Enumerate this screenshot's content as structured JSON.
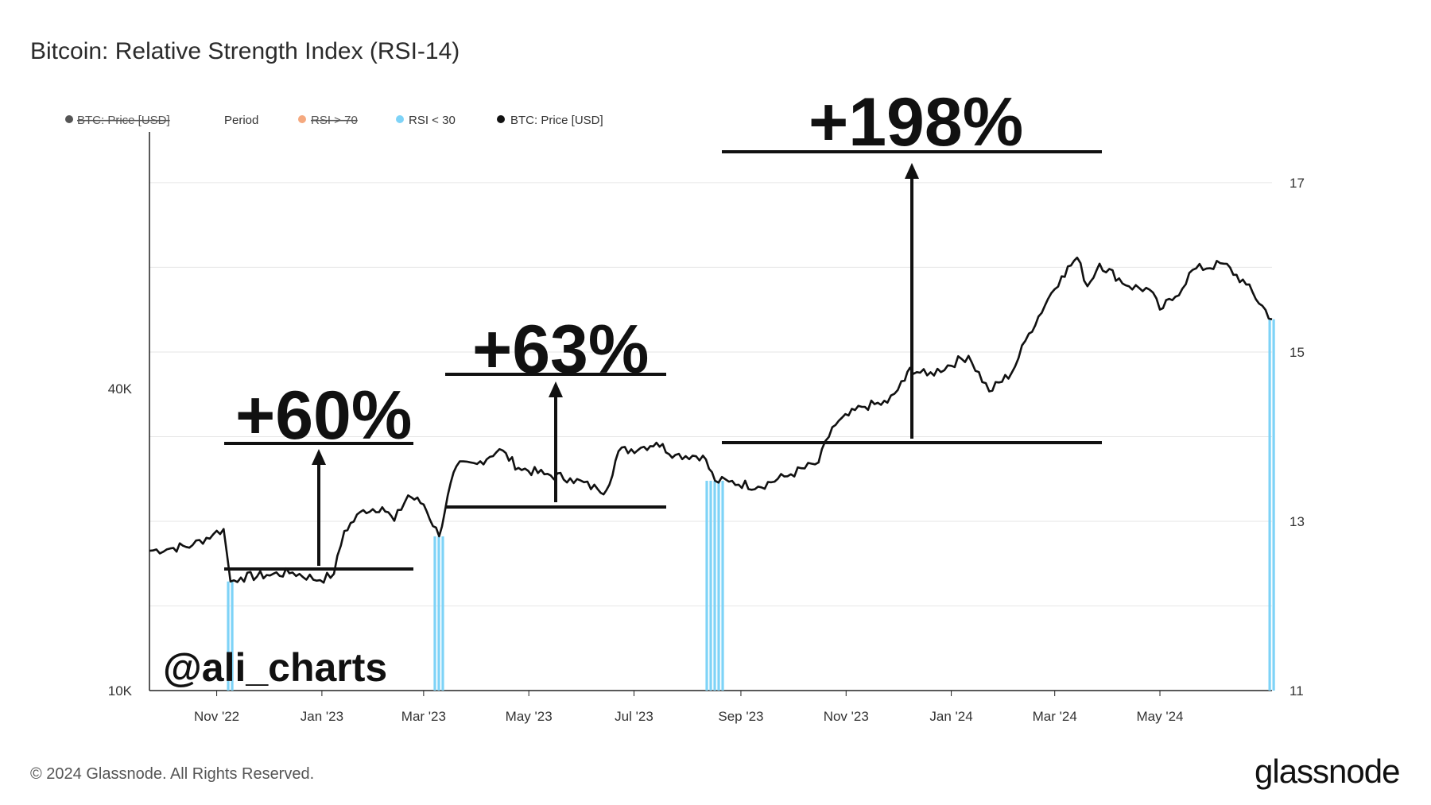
{
  "chart_data": {
    "type": "line",
    "title": "Bitcoin: Relative Strength Index (RSI-14)",
    "legend": {
      "placement": "top-left",
      "items": [
        {
          "label": "BTC: Price [USD]",
          "color": "#555555",
          "hidden": true
        },
        {
          "label": "Period",
          "color": "",
          "hidden": false
        },
        {
          "label": "RSI > 70",
          "color": "#f5a97f",
          "hidden": true
        },
        {
          "label": "RSI < 30",
          "color": "#7ed3f7",
          "hidden": false
        },
        {
          "label": "BTC: Price [USD]",
          "color": "#111111",
          "hidden": false
        }
      ]
    },
    "x_ticks": [
      "Nov '22",
      "Jan '23",
      "Mar '23",
      "May '23",
      "Jul '23",
      "Sep '23",
      "Nov '23",
      "Jan '24",
      "Mar '24",
      "May '24"
    ],
    "x_range": [
      "2022-09-23",
      "2024-07-05"
    ],
    "y_left": {
      "scale": "log",
      "ticks": [
        "40K",
        "10K"
      ],
      "tick_values": [
        40000,
        10000
      ],
      "range": [
        10000,
        130000
      ]
    },
    "y_right": {
      "ticks": [
        "17",
        "15",
        "13",
        "11"
      ],
      "tick_values": [
        17,
        15,
        13,
        11
      ],
      "range": [
        11,
        17.6
      ]
    },
    "grid": true,
    "series": [
      {
        "name": "BTC: Price [USD]",
        "color": "#111111",
        "x": [
          "2022-09-23",
          "2022-10-05",
          "2022-10-18",
          "2022-10-30",
          "2022-11-05",
          "2022-11-09",
          "2022-11-15",
          "2022-11-30",
          "2022-12-15",
          "2022-12-31",
          "2023-01-08",
          "2023-01-14",
          "2023-01-25",
          "2023-02-05",
          "2023-02-12",
          "2023-02-20",
          "2023-03-01",
          "2023-03-10",
          "2023-03-15",
          "2023-03-20",
          "2023-04-01",
          "2023-04-14",
          "2023-04-25",
          "2023-05-10",
          "2023-05-25",
          "2023-06-10",
          "2023-06-15",
          "2023-06-22",
          "2023-07-05",
          "2023-07-14",
          "2023-07-25",
          "2023-08-10",
          "2023-08-17",
          "2023-08-25",
          "2023-09-11",
          "2023-09-30",
          "2023-10-16",
          "2023-10-24",
          "2023-11-10",
          "2023-11-25",
          "2023-12-05",
          "2023-12-08",
          "2023-12-18",
          "2024-01-11",
          "2024-01-23",
          "2024-02-05",
          "2024-02-15",
          "2024-02-28",
          "2024-03-05",
          "2024-03-14",
          "2024-03-20",
          "2024-03-27",
          "2024-04-13",
          "2024-04-25",
          "2024-05-01",
          "2024-05-10",
          "2024-05-20",
          "2024-06-07",
          "2024-06-20",
          "2024-07-05"
        ],
        "values": [
          19000,
          19200,
          19500,
          20500,
          21000,
          16500,
          16800,
          17000,
          17200,
          16600,
          17100,
          20800,
          22900,
          23200,
          21800,
          24500,
          23500,
          20300,
          24500,
          28000,
          28300,
          30300,
          27800,
          27000,
          26500,
          25200,
          25100,
          30000,
          30500,
          31200,
          29500,
          29400,
          26200,
          26100,
          25500,
          27000,
          28500,
          33500,
          36800,
          37500,
          41500,
          44000,
          42500,
          46500,
          39500,
          43000,
          51500,
          62000,
          67000,
          73000,
          64000,
          71000,
          64000,
          63000,
          57500,
          61000,
          69000,
          71000,
          64500,
          55000
        ]
      }
    ],
    "rsi_below_30_periods": [
      "2022-11-09",
      "2023-03-10",
      "2023-08-17",
      "2024-07-05"
    ],
    "annotations": [
      "+60%",
      "+63%",
      "+198%",
      "@ali_charts"
    ]
  },
  "footer": {
    "copyright": "© 2024 Glassnode. All Rights Reserved.",
    "brand": "glassnode"
  }
}
